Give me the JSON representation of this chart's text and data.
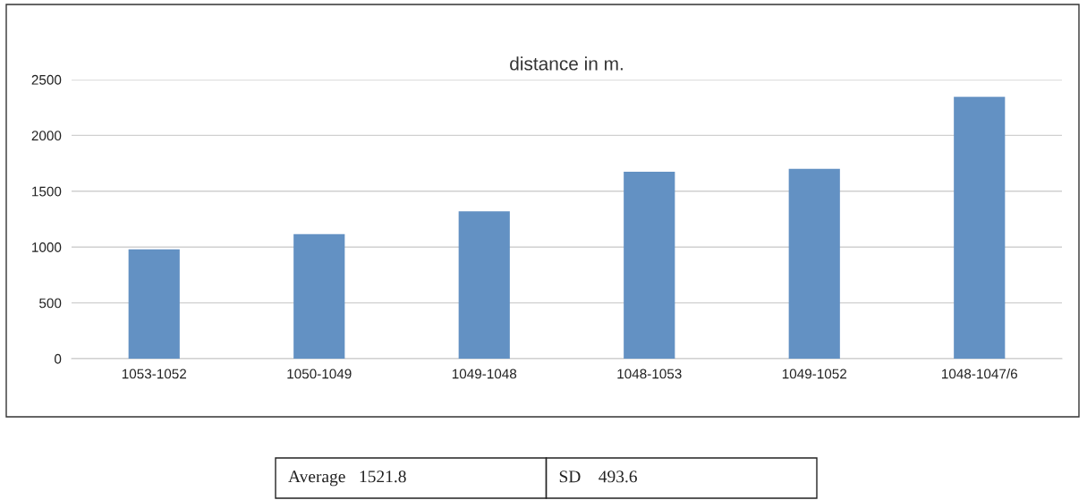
{
  "chart_data": {
    "type": "bar",
    "title": "distance in m.",
    "categories": [
      "1053-1052",
      "1050-1049",
      "1049-1048",
      "1048-1053",
      "1049-1052",
      "1048-1047/6"
    ],
    "values": [
      980,
      1115,
      1320,
      1675,
      1700,
      2345
    ],
    "color": "#6391c3",
    "ylim": [
      0,
      2500
    ],
    "yticks": [
      0,
      500,
      1000,
      1500,
      2000,
      2500
    ],
    "grid": "y",
    "annotations": [
      "Average   1521.8",
      "SD    493.6"
    ]
  }
}
